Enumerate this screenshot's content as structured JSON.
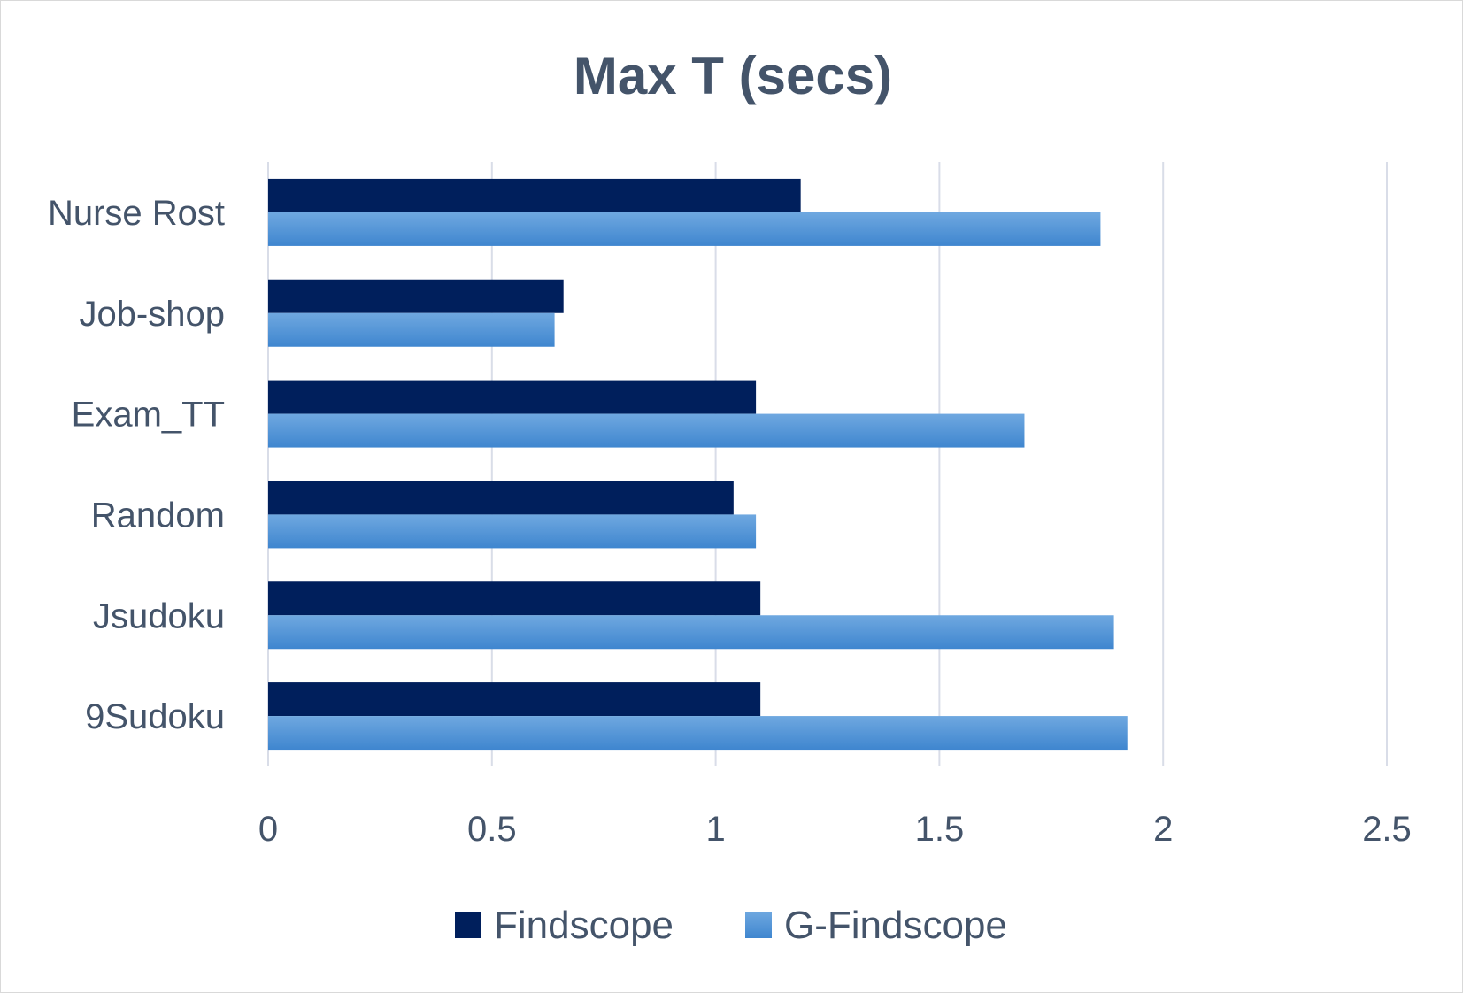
{
  "colors": {
    "series1": "#001f5c",
    "series2": "#5b9bd5",
    "grid": "#d9dde8",
    "text": "#44546a"
  },
  "chart_data": {
    "type": "bar",
    "orientation": "horizontal",
    "title": "Max T (secs)",
    "categories": [
      "Nurse Rost",
      "Job-shop",
      "Exam_TT",
      "Random",
      "Jsudoku",
      "9Sudoku"
    ],
    "series": [
      {
        "name": "Findscope",
        "values": [
          1.19,
          0.66,
          1.09,
          1.04,
          1.1,
          1.1
        ]
      },
      {
        "name": "G-Findscope",
        "values": [
          1.86,
          0.64,
          1.69,
          1.09,
          1.89,
          1.92
        ]
      }
    ],
    "xlim": [
      0,
      2.5
    ],
    "xticks": [
      "0",
      "0.5",
      "1",
      "1.5",
      "2",
      "2.5"
    ],
    "xtick_values": [
      0,
      0.5,
      1,
      1.5,
      2,
      2.5
    ],
    "grid": true,
    "legend_position": "bottom"
  }
}
